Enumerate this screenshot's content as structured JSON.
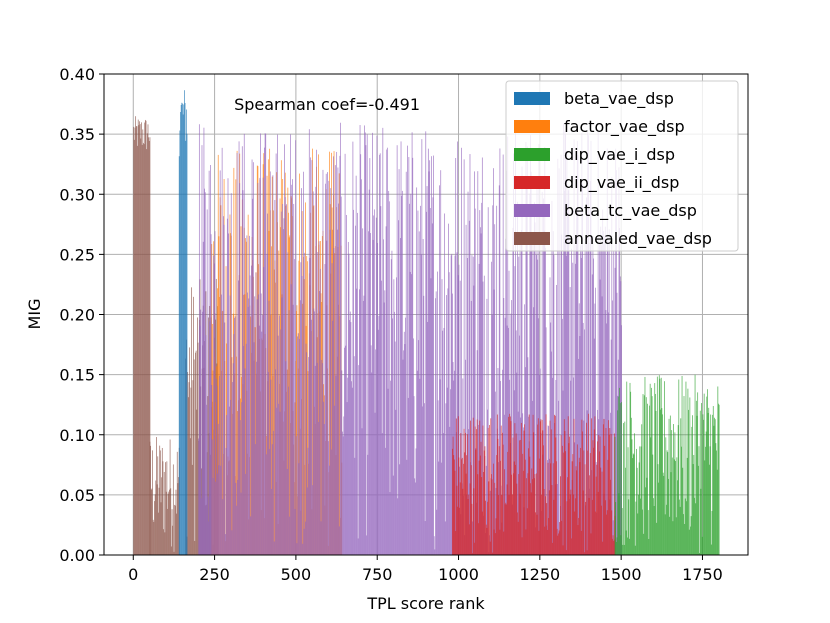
{
  "chart_data": {
    "type": "bar",
    "xlabel": "TPL score rank",
    "ylabel": "MIG",
    "xlim": [
      -90,
      1890
    ],
    "ylim": [
      0.0,
      0.4
    ],
    "xticks": [
      0,
      250,
      500,
      750,
      1000,
      1250,
      1500,
      1750
    ],
    "yticks": [
      0.0,
      0.05,
      0.1,
      0.15,
      0.2,
      0.25,
      0.3,
      0.35,
      0.4
    ],
    "xtick_labels": [
      "0",
      "250",
      "500",
      "750",
      "1000",
      "1250",
      "1500",
      "1750"
    ],
    "ytick_labels": [
      "0.00",
      "0.05",
      "0.10",
      "0.15",
      "0.20",
      "0.25",
      "0.30",
      "0.35",
      "0.40"
    ],
    "grid": true,
    "legend_position": "top-right",
    "annotation": {
      "text": "Spearman coef=-0.491",
      "x": 310,
      "y": 0.37
    },
    "series": [
      {
        "name": "beta_vae_dsp",
        "color": "#1f77b4",
        "segments": [
          {
            "rank_range": [
              140,
              165
            ],
            "mig_range": [
              0.33,
              0.39
            ]
          }
        ]
      },
      {
        "name": "factor_vae_dsp",
        "color": "#ff7f0e",
        "segments": [
          {
            "rank_range": [
              240,
              640
            ],
            "mig_range": [
              0.0,
              0.34
            ]
          }
        ]
      },
      {
        "name": "dip_vae_i_dsp",
        "color": "#2ca02c",
        "segments": [
          {
            "rank_range": [
              1480,
              1800
            ],
            "mig_range": [
              0.0,
              0.15
            ]
          }
        ]
      },
      {
        "name": "dip_vae_ii_dsp",
        "color": "#d62728",
        "segments": [
          {
            "rank_range": [
              980,
              1480
            ],
            "mig_range": [
              0.0,
              0.12
            ]
          }
        ]
      },
      {
        "name": "beta_tc_vae_dsp",
        "color": "#9467bd",
        "segments": [
          {
            "rank_range": [
              200,
              1500
            ],
            "mig_range": [
              0.0,
              0.36
            ]
          }
        ]
      },
      {
        "name": "annealed_vae_dsp",
        "color": "#8c564b",
        "segments": [
          {
            "rank_range": [
              0,
              50
            ],
            "mig_range": [
              0.33,
              0.365
            ]
          },
          {
            "rank_range": [
              50,
              140
            ],
            "mig_range": [
              0.0,
              0.1
            ]
          },
          {
            "rank_range": [
              160,
              260
            ],
            "mig_range": [
              0.0,
              0.23
            ]
          }
        ]
      }
    ]
  }
}
